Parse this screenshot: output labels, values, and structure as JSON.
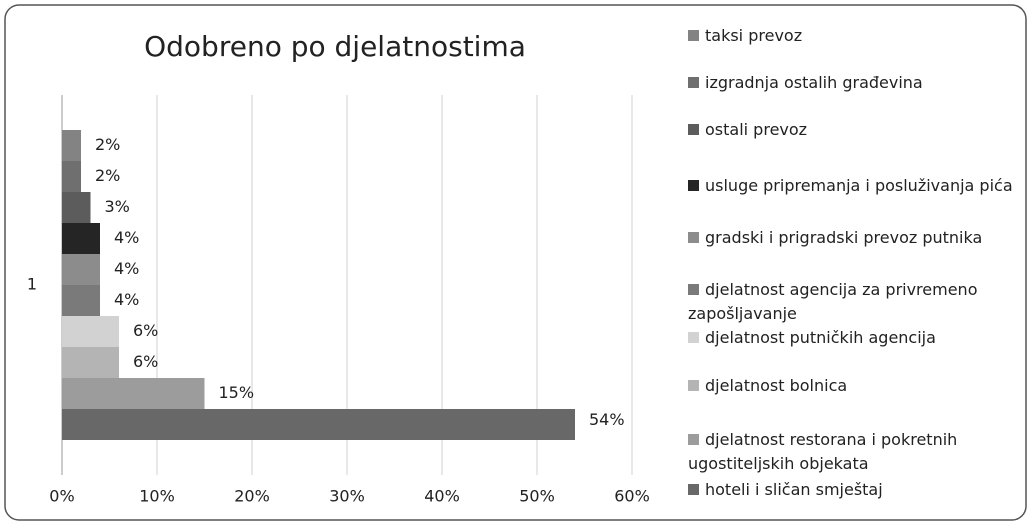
{
  "chart_data": {
    "type": "bar",
    "orientation": "horizontal",
    "title": "Odobreno po djelatnostima",
    "categories": [
      "1"
    ],
    "series": [
      {
        "name": "taksi prevoz",
        "color": "#838383",
        "values": [
          2
        ],
        "value_labels": [
          "2%"
        ]
      },
      {
        "name": "izgradnja ostalih građevina",
        "color": "#6f6f6f",
        "values": [
          2
        ],
        "value_labels": [
          "2%"
        ]
      },
      {
        "name": "ostali prevoz",
        "color": "#5c5c5c",
        "values": [
          3
        ],
        "value_labels": [
          "3%"
        ]
      },
      {
        "name": "usluge pripremanja i posluživanja pića",
        "color": "#252525",
        "values": [
          4
        ],
        "value_labels": [
          "4%"
        ]
      },
      {
        "name": "gradski i prigradski prevoz putnika",
        "color": "#8c8c8c",
        "values": [
          4
        ],
        "value_labels": [
          "4%"
        ]
      },
      {
        "name": "djelatnost agencija za privremeno zapošljavanje",
        "color": "#7a7a7a",
        "values": [
          4
        ],
        "value_labels": [
          "4%"
        ]
      },
      {
        "name": "djelatnost putničkih agencija",
        "color": "#d2d2d2",
        "values": [
          6
        ],
        "value_labels": [
          "6%"
        ]
      },
      {
        "name": "djelatnost bolnica",
        "color": "#b4b4b4",
        "values": [
          6
        ],
        "value_labels": [
          "6%"
        ]
      },
      {
        "name": "djelatnost restorana i pokretnih ugostiteljskih objekata",
        "color": "#9c9c9c",
        "values": [
          15
        ],
        "value_labels": [
          "15%"
        ]
      },
      {
        "name": "hoteli i sličan smještaj",
        "color": "#686868",
        "values": [
          54
        ],
        "value_labels": [
          "54%"
        ]
      }
    ],
    "xlim": [
      0,
      60
    ],
    "xticks": [
      {
        "value": 0,
        "label": "0%"
      },
      {
        "value": 10,
        "label": "10%"
      },
      {
        "value": 20,
        "label": "20%"
      },
      {
        "value": 30,
        "label": "30%"
      },
      {
        "value": 40,
        "label": "40%"
      },
      {
        "value": 50,
        "label": "50%"
      },
      {
        "value": 60,
        "label": "60%"
      }
    ],
    "grid": true,
    "legend": "right"
  }
}
